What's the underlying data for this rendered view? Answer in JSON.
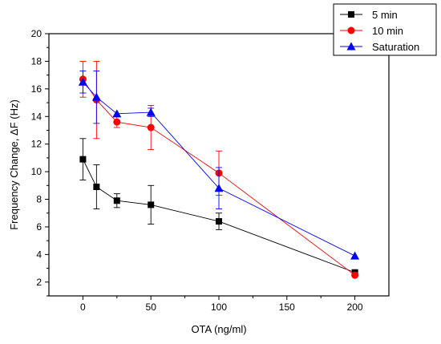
{
  "chart_data": {
    "type": "line",
    "xlabel": "OTA (ng/ml)",
    "ylabel": "Frequency Change, ΔF (Hz)",
    "xlim": [
      -25,
      225
    ],
    "ylim": [
      1,
      20
    ],
    "x_ticks": [
      0,
      50,
      100,
      150,
      200
    ],
    "y_ticks": [
      2,
      4,
      6,
      8,
      10,
      12,
      14,
      16,
      18,
      20
    ],
    "grid": false,
    "legend_position": "top-right",
    "x": [
      0,
      10,
      25,
      50,
      100,
      200
    ],
    "series": [
      {
        "name": "5 min",
        "color": "#000000",
        "marker": "square",
        "values": [
          10.9,
          8.9,
          7.9,
          7.6,
          6.4,
          2.7
        ],
        "error": [
          1.5,
          1.6,
          0.5,
          1.4,
          0.6,
          0
        ]
      },
      {
        "name": "10 min",
        "color": "#ff0000",
        "marker": "circle",
        "values": [
          16.7,
          15.2,
          13.6,
          13.2,
          9.9,
          2.5
        ],
        "error": [
          1.3,
          2.8,
          0.4,
          1.6,
          1.6,
          0
        ]
      },
      {
        "name": "Saturation",
        "color": "#0000ff",
        "marker": "triangle",
        "values": [
          16.5,
          15.4,
          14.2,
          14.3,
          8.8,
          3.9
        ],
        "error": [
          0.8,
          1.9,
          0,
          0.3,
          1.5,
          0
        ]
      }
    ]
  }
}
